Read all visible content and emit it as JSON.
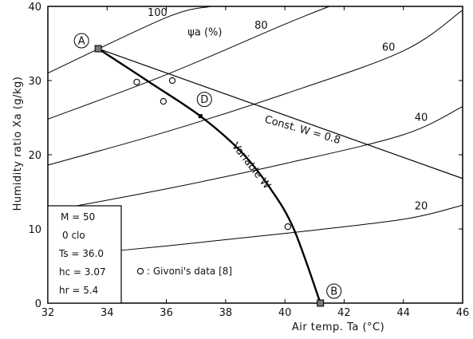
{
  "chart_data": {
    "type": "line",
    "title": "",
    "xlabel": "Air temp. Ta (°C)",
    "ylabel": "Humidity ratio Xa (g/kg)",
    "xlim": [
      32,
      46
    ],
    "ylim": [
      0,
      40
    ],
    "xticks": [
      "32",
      "34",
      "36",
      "38",
      "40",
      "42",
      "44",
      "46"
    ],
    "yticks": [
      "0",
      "10",
      "20",
      "30",
      "40"
    ],
    "grid": false,
    "rh_curves": [
      {
        "label": "100",
        "points": [
          [
            32,
            31.0
          ],
          [
            36,
            38.5
          ],
          [
            37.5,
            40.0
          ]
        ]
      },
      {
        "label": "80",
        "points": [
          [
            32,
            24.8
          ],
          [
            36,
            30.8
          ],
          [
            40,
            37.6
          ],
          [
            41.5,
            40.0
          ]
        ]
      },
      {
        "label": "60",
        "points": [
          [
            32,
            18.6
          ],
          [
            36,
            23.1
          ],
          [
            40,
            28.2
          ],
          [
            44,
            34.0
          ],
          [
            46,
            39.5
          ]
        ]
      },
      {
        "label": "40",
        "points": [
          [
            32,
            12.4
          ],
          [
            36,
            15.4
          ],
          [
            40,
            18.8
          ],
          [
            44,
            22.7
          ],
          [
            46,
            26.5
          ]
        ]
      },
      {
        "label": "20",
        "points": [
          [
            32,
            6.2
          ],
          [
            36,
            7.7
          ],
          [
            40,
            9.4
          ],
          [
            44,
            11.3
          ],
          [
            46,
            13.2
          ]
        ]
      }
    ],
    "rh_title": "ψa (%)",
    "series": [
      {
        "name": "Const. W = 0.8",
        "points": [
          [
            33.7,
            34.3
          ],
          [
            46,
            16.8
          ]
        ]
      },
      {
        "name": "Variable W",
        "points": [
          [
            33.7,
            34.3
          ],
          [
            35.5,
            29.6
          ],
          [
            37.15,
            25.2
          ],
          [
            38.5,
            20.5
          ],
          [
            39.5,
            15.5
          ],
          [
            40.3,
            10.0
          ],
          [
            41.2,
            0.0
          ]
        ]
      }
    ],
    "marked_points": [
      {
        "label": "A",
        "x": 33.7,
        "y": 34.3
      },
      {
        "label": "D",
        "x": 37.15,
        "y": 25.2
      },
      {
        "label": "B",
        "x": 41.2,
        "y": 0.0
      }
    ],
    "givoni_points": [
      {
        "x": 35.0,
        "y": 29.8
      },
      {
        "x": 36.2,
        "y": 30.0
      },
      {
        "x": 35.9,
        "y": 27.2
      },
      {
        "x": 40.1,
        "y": 10.3
      }
    ],
    "legend": {
      "lines": [
        "M = 50",
        "0 clo",
        "Ts = 36.0",
        "hc = 3.07",
        "hr = 5.4"
      ],
      "givoni": ": Givoni's data [8]"
    }
  }
}
